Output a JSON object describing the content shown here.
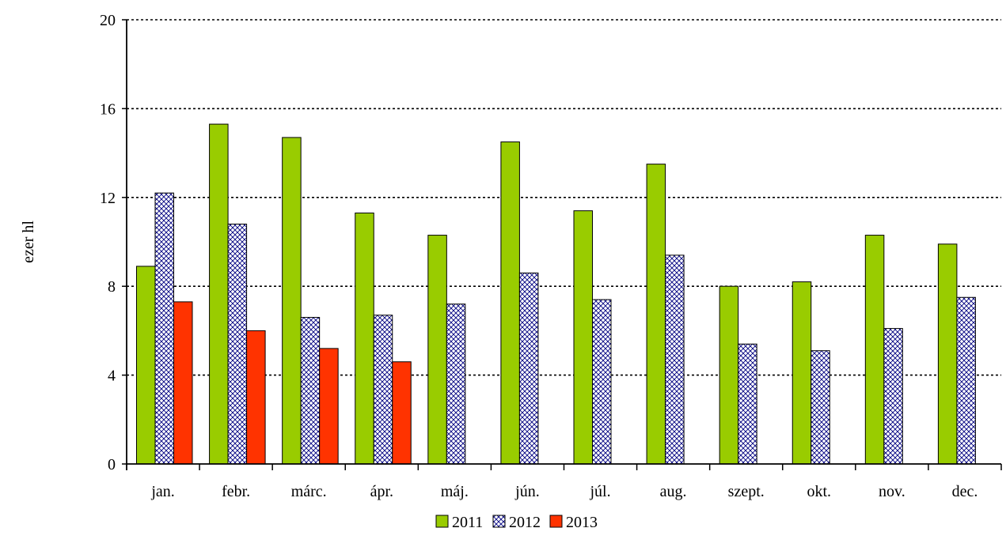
{
  "chart_data": {
    "type": "bar",
    "ylabel": "ezer hl",
    "ylim": [
      0,
      20
    ],
    "yticks": [
      0,
      4,
      8,
      12,
      16,
      20
    ],
    "grid": "horizontal dotted",
    "legend_position": "bottom-center",
    "categories": [
      "jan.",
      "febr.",
      "márc.",
      "ápr.",
      "máj.",
      "jún.",
      "júl.",
      "aug.",
      "szept.",
      "okt.",
      "nov.",
      "dec."
    ],
    "series": [
      {
        "name": "2011",
        "color": "#99cc00",
        "pattern": "solid",
        "values": [
          8.9,
          15.3,
          14.7,
          11.3,
          10.3,
          14.5,
          11.4,
          13.5,
          8.0,
          8.2,
          10.3,
          9.9
        ]
      },
      {
        "name": "2012",
        "color": "#000080",
        "pattern": "crosshatch",
        "values": [
          12.2,
          10.8,
          6.6,
          6.7,
          7.2,
          8.6,
          7.4,
          9.4,
          5.4,
          5.1,
          6.1,
          7.5
        ]
      },
      {
        "name": "2013",
        "color": "#ff3300",
        "pattern": "solid",
        "values": [
          7.3,
          6.0,
          5.2,
          4.6,
          null,
          null,
          null,
          null,
          null,
          null,
          null,
          null
        ]
      }
    ]
  }
}
